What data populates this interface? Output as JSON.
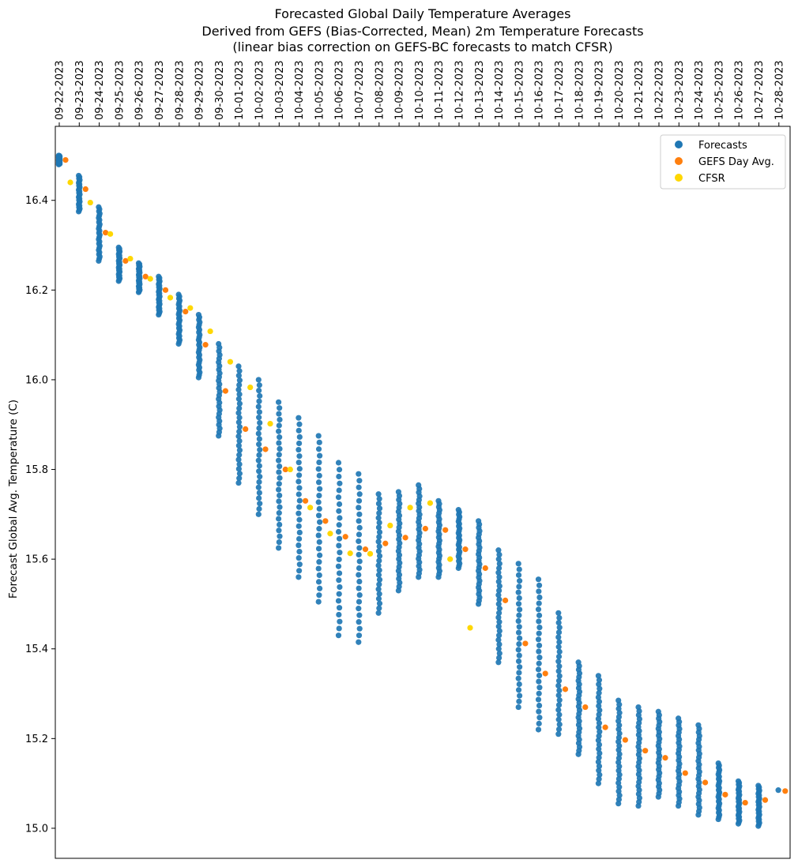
{
  "chart_data": {
    "type": "scatter",
    "title_lines": [
      "Forecasted Global Daily Temperature Averages",
      "Derived from GEFS (Bias-Corrected, Mean) 2m Temperature Forecasts",
      "(linear bias correction on GEFS-BC forecasts to match CFSR)"
    ],
    "xlabel": "",
    "ylabel": "Forecast Global Avg. Temperature (C)",
    "x_axis_position": "top",
    "x_tick_rotation": "vertical",
    "categories": [
      "09-22-2023",
      "09-23-2023",
      "09-24-2023",
      "09-25-2023",
      "09-26-2023",
      "09-27-2023",
      "09-28-2023",
      "09-29-2023",
      "09-30-2023",
      "10-01-2023",
      "10-02-2023",
      "10-03-2023",
      "10-04-2023",
      "10-05-2023",
      "10-06-2023",
      "10-07-2023",
      "10-08-2023",
      "10-09-2023",
      "10-10-2023",
      "10-11-2023",
      "10-12-2023",
      "10-13-2023",
      "10-14-2023",
      "10-15-2023",
      "10-16-2023",
      "10-17-2023",
      "10-18-2023",
      "10-19-2023",
      "10-20-2023",
      "10-21-2023",
      "10-22-2023",
      "10-23-2023",
      "10-24-2023",
      "10-25-2023",
      "10-26-2023",
      "10-27-2023",
      "10-28-2023"
    ],
    "ylim": [
      14.933,
      16.565
    ],
    "yticks": [
      15.0,
      15.2,
      15.4,
      15.6,
      15.8,
      16.0,
      16.2,
      16.4
    ],
    "ytick_labels": [
      "15.0",
      "15.2",
      "15.4",
      "15.6",
      "15.8",
      "16.0",
      "16.2",
      "16.4"
    ],
    "grid": false,
    "legend_position": "top-right",
    "legend": [
      "Forecasts",
      "GEFS Day Avg.",
      "CFSR"
    ],
    "colors": {
      "forecasts": "#1f77b4",
      "gefs_day_avg": "#ff7f0e",
      "cfsr": "#ffd700"
    },
    "series": [
      {
        "name": "Forecasts",
        "forecast_ranges": [
          [
            16.48,
            16.5
          ],
          [
            16.375,
            16.455
          ],
          [
            16.265,
            16.385
          ],
          [
            16.22,
            16.295
          ],
          [
            16.195,
            16.26
          ],
          [
            16.145,
            16.23
          ],
          [
            16.08,
            16.19
          ],
          [
            16.005,
            16.145
          ],
          [
            15.875,
            16.08
          ],
          [
            15.77,
            16.03
          ],
          [
            15.7,
            16.0
          ],
          [
            15.625,
            15.95
          ],
          [
            15.56,
            15.915
          ],
          [
            15.505,
            15.875
          ],
          [
            15.43,
            15.815
          ],
          [
            15.415,
            15.79
          ],
          [
            15.48,
            15.745
          ],
          [
            15.53,
            15.75
          ],
          [
            15.56,
            15.765
          ],
          [
            15.56,
            15.73
          ],
          [
            15.58,
            15.71
          ],
          [
            15.5,
            15.685
          ],
          [
            15.37,
            15.62
          ],
          [
            15.27,
            15.59
          ],
          [
            15.22,
            15.555
          ],
          [
            15.21,
            15.48
          ],
          [
            15.165,
            15.37
          ],
          [
            15.1,
            15.34
          ],
          [
            15.055,
            15.285
          ],
          [
            15.05,
            15.27
          ],
          [
            15.07,
            15.26
          ],
          [
            15.05,
            15.245
          ],
          [
            15.03,
            15.23
          ],
          [
            15.02,
            15.145
          ],
          [
            15.01,
            15.105
          ],
          [
            15.005,
            15.095
          ],
          [
            15.085,
            15.085
          ]
        ]
      },
      {
        "name": "GEFS Day Avg.",
        "values": [
          16.49,
          16.425,
          16.328,
          16.265,
          16.23,
          16.2,
          16.152,
          16.078,
          15.975,
          15.89,
          15.845,
          15.8,
          15.73,
          15.685,
          15.65,
          15.622,
          15.635,
          15.648,
          15.668,
          15.665,
          15.622,
          15.58,
          15.508,
          15.412,
          15.345,
          15.31,
          15.27,
          15.225,
          15.197,
          15.173,
          15.157,
          15.123,
          15.102,
          15.075,
          15.057,
          15.063,
          15.083
        ]
      },
      {
        "name": "CFSR",
        "values": [
          16.44,
          16.395,
          16.325,
          16.27,
          16.225,
          16.183,
          16.16,
          16.108,
          16.04,
          15.983,
          15.902,
          15.8,
          15.715,
          15.657,
          15.613,
          15.612,
          15.675,
          15.715,
          15.725,
          15.6,
          15.447
        ]
      }
    ]
  }
}
